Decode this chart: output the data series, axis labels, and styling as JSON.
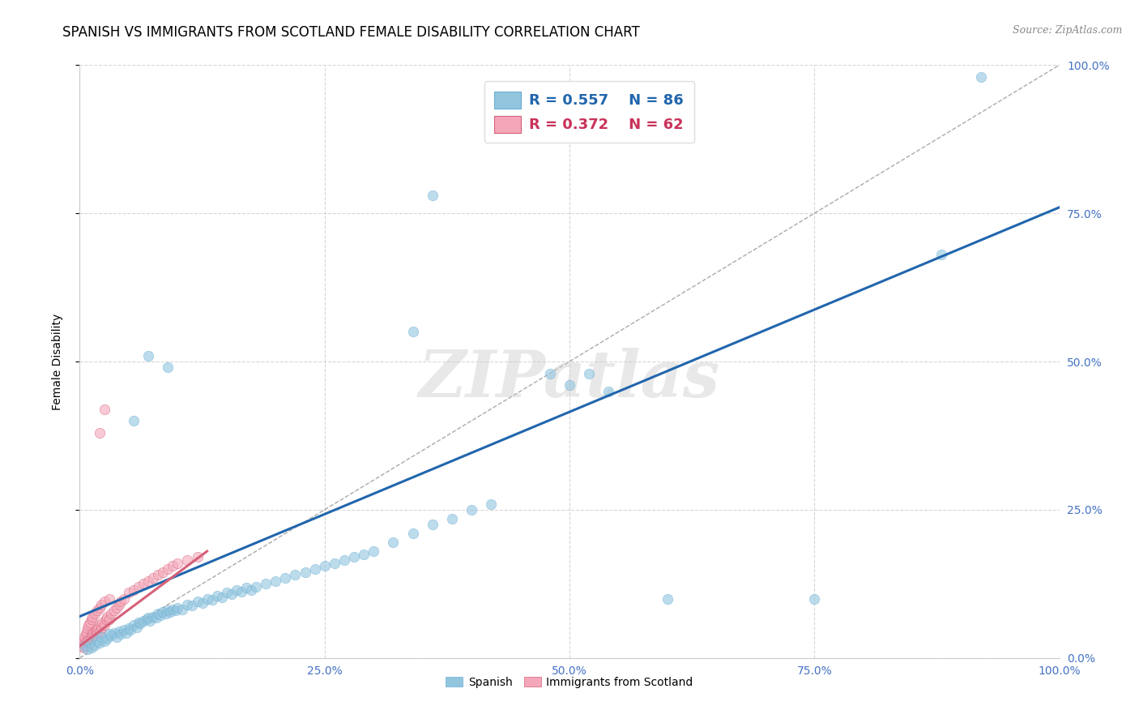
{
  "title": "SPANISH VS IMMIGRANTS FROM SCOTLAND FEMALE DISABILITY CORRELATION CHART",
  "source": "Source: ZipAtlas.com",
  "ylabel": "Female Disability",
  "xlim": [
    0,
    1.0
  ],
  "ylim": [
    0,
    1.0
  ],
  "xticks": [
    0.0,
    0.25,
    0.5,
    0.75,
    1.0
  ],
  "yticks": [
    0.0,
    0.25,
    0.5,
    0.75,
    1.0
  ],
  "xticklabels": [
    "0.0%",
    "25.0%",
    "50.0%",
    "75.0%",
    "100.0%"
  ],
  "yticklabels_right": [
    "0.0%",
    "25.0%",
    "50.0%",
    "75.0%",
    "100.0%"
  ],
  "legend_r_blue": "R = 0.557",
  "legend_n_blue": "N = 86",
  "legend_r_pink": "R = 0.372",
  "legend_n_pink": "N = 62",
  "blue_color": "#92c5de",
  "blue_edge_color": "#6baed6",
  "pink_color": "#f4a7b9",
  "pink_edge_color": "#d6607a",
  "blue_line_color": "#2166ac",
  "pink_line_color": "#d6607a",
  "diagonal_color": "#cccccc",
  "watermark": "ZIPatlas",
  "blue_scatter_x": [
    0.005,
    0.008,
    0.01,
    0.012,
    0.015,
    0.018,
    0.02,
    0.022,
    0.025,
    0.028,
    0.03,
    0.032,
    0.035,
    0.038,
    0.04,
    0.042,
    0.045,
    0.048,
    0.05,
    0.052,
    0.055,
    0.058,
    0.06,
    0.062,
    0.065,
    0.068,
    0.07,
    0.072,
    0.075,
    0.078,
    0.08,
    0.082,
    0.085,
    0.088,
    0.09,
    0.092,
    0.095,
    0.098,
    0.1,
    0.105,
    0.11,
    0.115,
    0.12,
    0.125,
    0.13,
    0.135,
    0.14,
    0.145,
    0.15,
    0.155,
    0.16,
    0.165,
    0.17,
    0.175,
    0.18,
    0.19,
    0.2,
    0.21,
    0.22,
    0.23,
    0.24,
    0.25,
    0.26,
    0.27,
    0.28,
    0.29,
    0.3,
    0.32,
    0.34,
    0.36,
    0.38,
    0.4,
    0.42,
    0.5,
    0.52,
    0.54,
    0.6,
    0.75,
    0.88,
    0.92,
    0.34,
    0.48,
    0.36,
    0.055,
    0.07,
    0.09
  ],
  "blue_scatter_y": [
    0.02,
    0.015,
    0.025,
    0.018,
    0.022,
    0.03,
    0.025,
    0.035,
    0.028,
    0.032,
    0.04,
    0.038,
    0.042,
    0.035,
    0.045,
    0.04,
    0.048,
    0.042,
    0.05,
    0.048,
    0.055,
    0.052,
    0.06,
    0.058,
    0.062,
    0.065,
    0.068,
    0.062,
    0.07,
    0.068,
    0.075,
    0.072,
    0.078,
    0.075,
    0.08,
    0.078,
    0.082,
    0.08,
    0.085,
    0.082,
    0.09,
    0.088,
    0.095,
    0.092,
    0.1,
    0.098,
    0.105,
    0.102,
    0.11,
    0.108,
    0.115,
    0.112,
    0.118,
    0.115,
    0.12,
    0.125,
    0.13,
    0.135,
    0.14,
    0.145,
    0.15,
    0.155,
    0.16,
    0.165,
    0.17,
    0.175,
    0.18,
    0.195,
    0.21,
    0.225,
    0.235,
    0.25,
    0.26,
    0.46,
    0.48,
    0.45,
    0.1,
    0.1,
    0.68,
    0.98,
    0.55,
    0.48,
    0.78,
    0.4,
    0.51,
    0.49
  ],
  "pink_scatter_x": [
    0.002,
    0.003,
    0.004,
    0.004,
    0.005,
    0.005,
    0.006,
    0.006,
    0.007,
    0.007,
    0.008,
    0.008,
    0.009,
    0.009,
    0.01,
    0.01,
    0.011,
    0.012,
    0.012,
    0.013,
    0.013,
    0.014,
    0.015,
    0.015,
    0.016,
    0.017,
    0.018,
    0.018,
    0.019,
    0.02,
    0.02,
    0.021,
    0.022,
    0.022,
    0.023,
    0.025,
    0.025,
    0.027,
    0.028,
    0.03,
    0.03,
    0.032,
    0.035,
    0.038,
    0.04,
    0.042,
    0.045,
    0.05,
    0.055,
    0.06,
    0.065,
    0.07,
    0.075,
    0.08,
    0.085,
    0.09,
    0.095,
    0.1,
    0.11,
    0.12,
    0.02,
    0.025
  ],
  "pink_scatter_y": [
    0.02,
    0.025,
    0.018,
    0.03,
    0.025,
    0.035,
    0.02,
    0.04,
    0.028,
    0.045,
    0.025,
    0.05,
    0.03,
    0.055,
    0.025,
    0.06,
    0.035,
    0.04,
    0.065,
    0.038,
    0.07,
    0.042,
    0.038,
    0.075,
    0.045,
    0.048,
    0.042,
    0.08,
    0.05,
    0.045,
    0.085,
    0.055,
    0.05,
    0.09,
    0.06,
    0.055,
    0.095,
    0.065,
    0.07,
    0.065,
    0.1,
    0.075,
    0.08,
    0.085,
    0.09,
    0.095,
    0.1,
    0.11,
    0.115,
    0.12,
    0.125,
    0.13,
    0.135,
    0.14,
    0.145,
    0.15,
    0.155,
    0.16,
    0.165,
    0.17,
    0.38,
    0.42
  ],
  "blue_trendline_x": [
    0.0,
    1.0
  ],
  "blue_trendline_y": [
    0.07,
    0.76
  ],
  "pink_trendline_x": [
    0.0,
    0.13
  ],
  "pink_trendline_y": [
    0.02,
    0.18
  ],
  "title_fontsize": 12,
  "axis_label_fontsize": 10,
  "tick_fontsize": 10,
  "legend_fontsize": 13,
  "marker_size": 80,
  "marker_alpha": 0.6
}
